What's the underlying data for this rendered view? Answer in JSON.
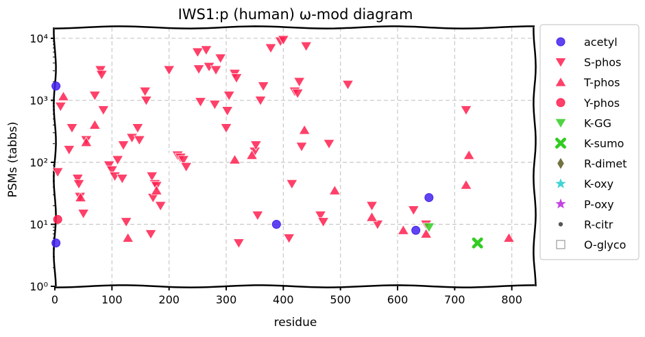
{
  "chart_data": {
    "type": "scatter",
    "title": "IWS1:p (human) ω-mod diagram",
    "xlabel": "residue",
    "ylabel": "PSMs (tabbs)",
    "xlim": [
      0,
      840
    ],
    "ylim": [
      1,
      15000
    ],
    "yscale": "log",
    "xticks": [
      0,
      100,
      200,
      300,
      400,
      500,
      600,
      700,
      800
    ],
    "xtick_labels": [
      "0",
      "100",
      "200",
      "300",
      "400",
      "500",
      "600",
      "700",
      "800"
    ],
    "yticks": [
      1,
      10,
      100,
      1000,
      10000
    ],
    "ytick_labels": [
      "10⁰",
      "10¹",
      "10²",
      "10³",
      "10⁴"
    ],
    "grid": true,
    "legend_position": "outside-right",
    "legend": [
      {
        "label": "acetyl",
        "marker": "circle",
        "color": "#4422ee"
      },
      {
        "label": "S-phos",
        "marker": "triangle-down",
        "color": "#ff1f4f"
      },
      {
        "label": "T-phos",
        "marker": "triangle-up",
        "color": "#ff1f4f"
      },
      {
        "label": "Y-phos",
        "marker": "circle",
        "color": "#ff1f4f"
      },
      {
        "label": "K-GG",
        "marker": "triangle-down",
        "color": "#33cc22"
      },
      {
        "label": "K-sumo",
        "marker": "x",
        "color": "#33cc22"
      },
      {
        "label": "R-dimet",
        "marker": "diamond",
        "color": "#5a5a1e"
      },
      {
        "label": "K-oxy",
        "marker": "star",
        "color": "#22cccc"
      },
      {
        "label": "P-oxy",
        "marker": "star",
        "color": "#bb22dd"
      },
      {
        "label": "R-citr",
        "marker": "dot",
        "color": "#555555"
      },
      {
        "label": "O-glyco",
        "marker": "square-open",
        "color": "#999999"
      }
    ],
    "series": [
      {
        "name": "acetyl",
        "points": [
          [
            2,
            1700
          ],
          [
            2,
            5
          ],
          [
            388,
            10
          ],
          [
            632,
            8
          ],
          [
            655,
            27
          ]
        ]
      },
      {
        "name": "S-phos",
        "points": [
          [
            5,
            70
          ],
          [
            10,
            800
          ],
          [
            25,
            160
          ],
          [
            30,
            360
          ],
          [
            40,
            55
          ],
          [
            42,
            45
          ],
          [
            44,
            28
          ],
          [
            50,
            15
          ],
          [
            55,
            230
          ],
          [
            70,
            1200
          ],
          [
            80,
            3100
          ],
          [
            82,
            2600
          ],
          [
            85,
            700
          ],
          [
            95,
            90
          ],
          [
            100,
            75
          ],
          [
            105,
            60
          ],
          [
            110,
            110
          ],
          [
            118,
            55
          ],
          [
            120,
            190
          ],
          [
            125,
            11
          ],
          [
            135,
            250
          ],
          [
            145,
            360
          ],
          [
            148,
            230
          ],
          [
            158,
            1400
          ],
          [
            160,
            1000
          ],
          [
            168,
            7
          ],
          [
            170,
            60
          ],
          [
            172,
            27
          ],
          [
            175,
            45
          ],
          [
            178,
            42
          ],
          [
            185,
            20
          ],
          [
            200,
            3100
          ],
          [
            215,
            130
          ],
          [
            220,
            120
          ],
          [
            225,
            110
          ],
          [
            230,
            85
          ],
          [
            250,
            6000
          ],
          [
            252,
            3200
          ],
          [
            255,
            950
          ],
          [
            265,
            6500
          ],
          [
            270,
            3500
          ],
          [
            280,
            860
          ],
          [
            282,
            3100
          ],
          [
            290,
            4800
          ],
          [
            300,
            360
          ],
          [
            302,
            680
          ],
          [
            305,
            1200
          ],
          [
            315,
            2700
          ],
          [
            318,
            2300
          ],
          [
            322,
            5
          ],
          [
            350,
            150
          ],
          [
            352,
            190
          ],
          [
            355,
            14
          ],
          [
            360,
            1000
          ],
          [
            365,
            1700
          ],
          [
            378,
            7000
          ],
          [
            395,
            9000
          ],
          [
            400,
            9500
          ],
          [
            410,
            6
          ],
          [
            415,
            45
          ],
          [
            420,
            1400
          ],
          [
            425,
            1300
          ],
          [
            428,
            2000
          ],
          [
            432,
            180
          ],
          [
            440,
            7500
          ],
          [
            465,
            14
          ],
          [
            470,
            11
          ],
          [
            480,
            200
          ],
          [
            513,
            1800
          ],
          [
            555,
            20
          ],
          [
            565,
            10
          ],
          [
            628,
            17
          ],
          [
            650,
            10
          ],
          [
            720,
            700
          ]
        ]
      },
      {
        "name": "T-phos",
        "points": [
          [
            15,
            1150
          ],
          [
            45,
            27
          ],
          [
            55,
            210
          ],
          [
            70,
            400
          ],
          [
            128,
            6
          ],
          [
            178,
            35
          ],
          [
            315,
            110
          ],
          [
            345,
            130
          ],
          [
            437,
            330
          ],
          [
            490,
            35
          ],
          [
            555,
            13
          ],
          [
            610,
            8
          ],
          [
            650,
            7
          ],
          [
            720,
            43
          ],
          [
            725,
            130
          ],
          [
            795,
            6
          ]
        ]
      },
      {
        "name": "Y-phos",
        "points": [
          [
            5,
            12
          ]
        ]
      },
      {
        "name": "K-GG",
        "points": [
          [
            655,
            9
          ]
        ]
      },
      {
        "name": "K-sumo",
        "points": [
          [
            740,
            5
          ]
        ]
      },
      {
        "name": "R-dimet",
        "points": []
      },
      {
        "name": "K-oxy",
        "points": []
      },
      {
        "name": "P-oxy",
        "points": []
      },
      {
        "name": "R-citr",
        "points": []
      },
      {
        "name": "O-glyco",
        "points": [
          [
            12,
            850
          ],
          [
            55,
            230
          ],
          [
            95,
            90
          ],
          [
            210,
            110
          ],
          [
            218,
            120
          ],
          [
            222,
            130
          ],
          [
            252,
            3000
          ],
          [
            268,
            3200
          ],
          [
            282,
            3000
          ],
          [
            318,
            2700
          ],
          [
            400,
            9500
          ],
          [
            420,
            1400
          ],
          [
            465,
            14
          ],
          [
            650,
            10
          ]
        ]
      }
    ]
  }
}
